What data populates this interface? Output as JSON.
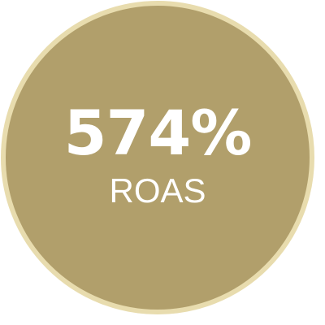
{
  "badge": {
    "value": "574%",
    "label": "ROAS"
  },
  "colors": {
    "fill": "#b19f6b",
    "ring": "#e8dcae",
    "text": "#ffffff"
  }
}
